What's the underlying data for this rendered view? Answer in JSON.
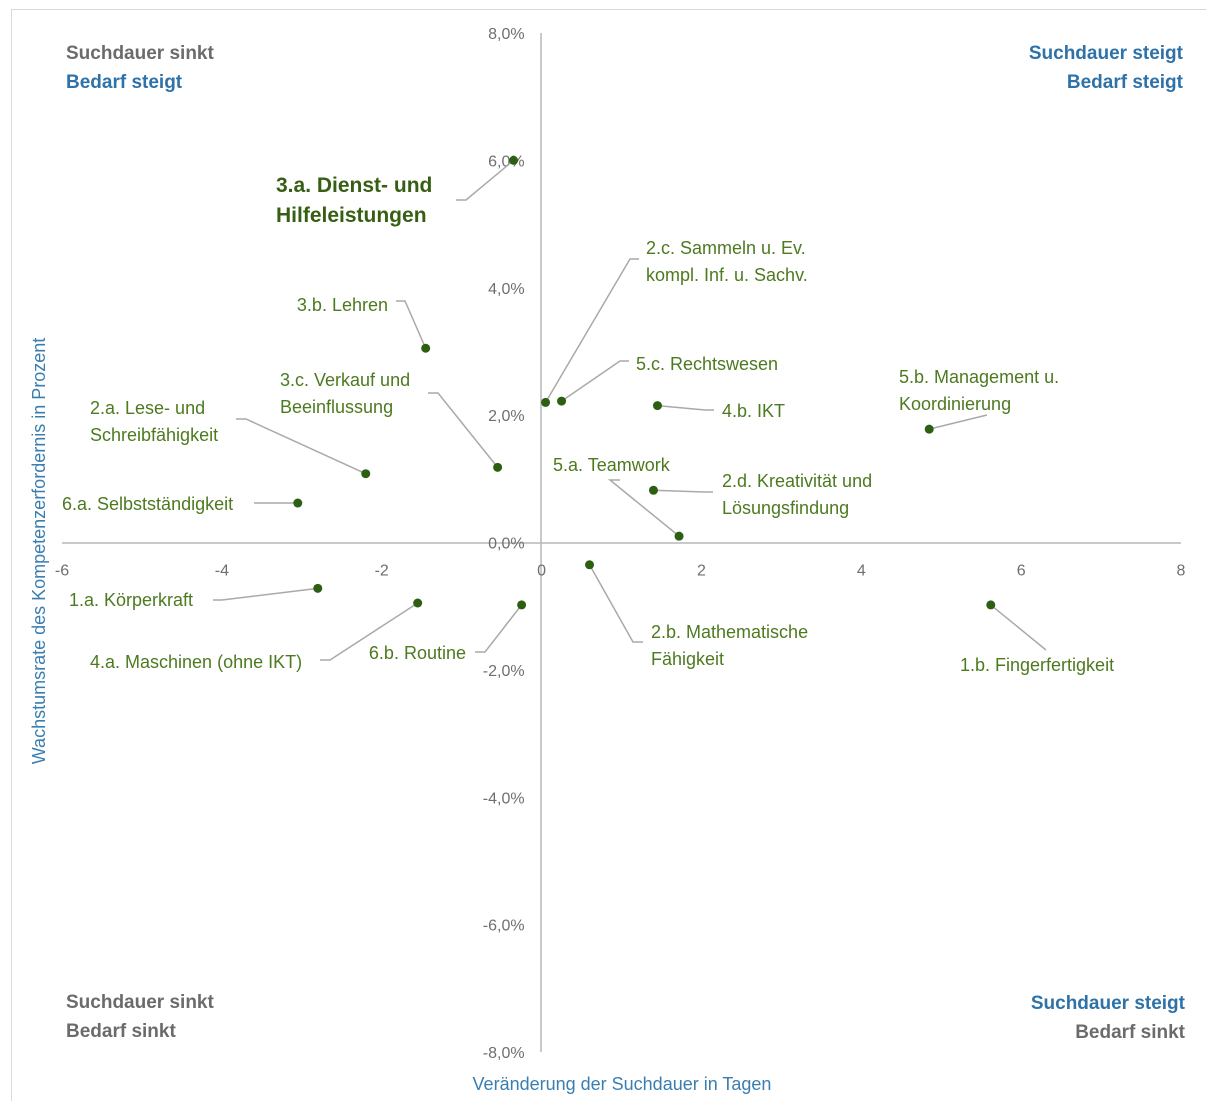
{
  "colors": {
    "point": "#2d5f12",
    "label": "#4d7a1f",
    "highlight_label": "#375f14",
    "axis": "#b7b7b7",
    "tick": "#6f6f6f",
    "axis_title": "#3a7eb0",
    "quadrant_blue": "#2e72a8",
    "quadrant_gray": "#6b6b6b",
    "leader": "#a9a9a9"
  },
  "chart_data": {
    "type": "scatter",
    "xlabel": "Veränderung der Suchdauer in Tagen",
    "ylabel": "Wachstumsrate des Kompetenzerfordernis in Prozent",
    "xlim": [
      -6,
      8
    ],
    "ylim": [
      -8,
      8
    ],
    "x_ticks": [
      "-6",
      "-4",
      "-2",
      "0",
      "2",
      "4",
      "6",
      "8"
    ],
    "y_ticks": [
      "8,0%",
      "6,0%",
      "4,0%",
      "2,0%",
      "0,0%",
      "-2,0%",
      "-4,0%",
      "-6,0%",
      "-8,0%"
    ],
    "grid": false,
    "quadrants": {
      "top_left": [
        "Suchdauer sinkt",
        "Bedarf steigt"
      ],
      "top_right": [
        "Suchdauer steigt",
        "Bedarf steigt"
      ],
      "bottom_left": [
        "Suchdauer sinkt",
        "Bedarf sinkt"
      ],
      "bottom_right": [
        "Suchdauer steigt",
        "Bedarf sinkt"
      ]
    },
    "points": [
      {
        "label": [
          "3.a. Dienst- und",
          "Hilfeleistungen"
        ],
        "x": -0.35,
        "y": 6.0,
        "highlight": true
      },
      {
        "label": [
          "2.c. Sammeln u. Ev.",
          "kompl. Inf. u. Sachv."
        ],
        "x": 0.05,
        "y": 2.2
      },
      {
        "label": [
          "3.b. Lehren"
        ],
        "x": -1.45,
        "y": 3.05
      },
      {
        "label": [
          "5.c. Rechtswesen"
        ],
        "x": 0.25,
        "y": 2.22
      },
      {
        "label": [
          "4.b. IKT"
        ],
        "x": 1.45,
        "y": 2.15
      },
      {
        "label": [
          "5.b. Management u.",
          "Koordinierung"
        ],
        "x": 4.85,
        "y": 1.78
      },
      {
        "label": [
          "3.c. Verkauf und",
          "Beeinflussung"
        ],
        "x": -0.55,
        "y": 1.18
      },
      {
        "label": [
          "2.a. Lese- und",
          "Schreibfähigkeit"
        ],
        "x": -2.2,
        "y": 1.08
      },
      {
        "label": [
          "6.a. Selbstständigkeit"
        ],
        "x": -3.05,
        "y": 0.62
      },
      {
        "label": [
          "5.a. Teamwork"
        ],
        "x": 1.72,
        "y": 0.1
      },
      {
        "label": [
          "2.d. Kreativität und",
          "Lösungsfindung"
        ],
        "x": 1.4,
        "y": 0.82
      },
      {
        "label": [
          "1.a. Körperkraft"
        ],
        "x": -2.8,
        "y": -0.72
      },
      {
        "label": [
          "4.a. Maschinen (ohne IKT)"
        ],
        "x": -1.55,
        "y": -0.95
      },
      {
        "label": [
          "6.b. Routine"
        ],
        "x": -0.25,
        "y": -0.98
      },
      {
        "label": [
          "2.b. Mathematische",
          "Fähigkeit"
        ],
        "x": 0.6,
        "y": -0.35
      },
      {
        "label": [
          "1.b. Fingerfertigkeit"
        ],
        "x": 5.62,
        "y": -0.98
      }
    ]
  }
}
